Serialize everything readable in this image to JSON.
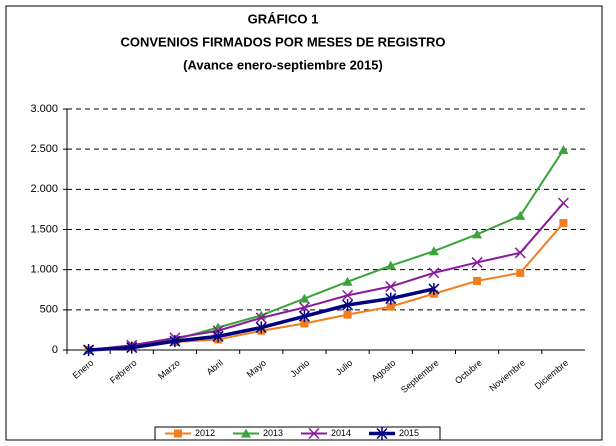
{
  "chart_data": {
    "type": "line",
    "title": "GRÁFICO 1",
    "subtitle": "CONVENIOS FIRMADOS POR MESES DE REGISTRO",
    "note": "(Avance enero-septiembre 2015)",
    "categories": [
      "Enero",
      "Febrero",
      "Marzo",
      "Abril",
      "Mayo",
      "Junio",
      "Julio",
      "Agosto",
      "Septiembre",
      "Octubre",
      "Noviembre",
      "Diciembre"
    ],
    "series": [
      {
        "name": "2012",
        "color": "#f07e1e",
        "marker": "square",
        "values": [
          0,
          40,
          100,
          130,
          240,
          330,
          440,
          540,
          700,
          860,
          960,
          1580
        ]
      },
      {
        "name": "2013",
        "color": "#3aa33a",
        "marker": "triangle",
        "values": [
          0,
          50,
          130,
          280,
          430,
          640,
          850,
          1050,
          1230,
          1440,
          1670,
          2490
        ]
      },
      {
        "name": "2014",
        "color": "#8b1a9b",
        "marker": "x",
        "values": [
          0,
          60,
          150,
          240,
          400,
          530,
          680,
          790,
          960,
          1090,
          1210,
          1830
        ]
      },
      {
        "name": "2015",
        "color": "#000080",
        "marker": "star",
        "values": [
          0,
          30,
          110,
          170,
          280,
          420,
          560,
          640,
          760,
          null,
          null,
          null
        ]
      }
    ],
    "ylim": [
      0,
      3000
    ],
    "yticks": [
      0,
      500,
      {
        "value": 1000,
        "label": "1.000"
      },
      {
        "value": 1500,
        "label": "1.500"
      },
      {
        "value": 2000,
        "label": "2.000"
      },
      {
        "value": 2500,
        "label": "2.500"
      },
      {
        "value": 3000,
        "label": "3.000"
      }
    ],
    "grid": true
  }
}
